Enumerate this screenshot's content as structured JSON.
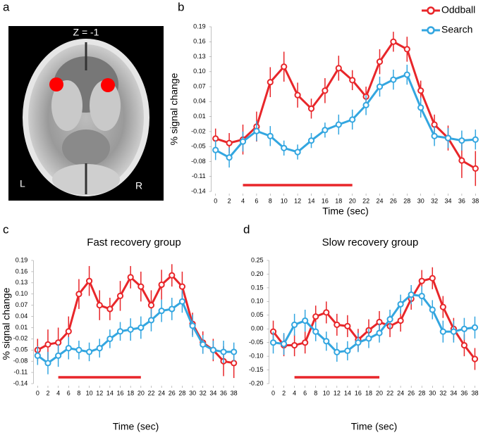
{
  "brain": {
    "panel_label": "a",
    "slice": "Z = -1",
    "left": "L",
    "right": "R"
  },
  "chart_data": [
    {
      "type": "line",
      "panel_label": "b",
      "y_label": "% signal change",
      "x_label": "Time (sec)",
      "legend": "upper right",
      "x": [
        0,
        2,
        4,
        6,
        8,
        10,
        12,
        14,
        16,
        18,
        20,
        22,
        24,
        26,
        28,
        30,
        32,
        34,
        36,
        38
      ],
      "xlim": [
        -1,
        39
      ],
      "xticks": [
        0,
        2,
        4,
        6,
        8,
        10,
        12,
        14,
        16,
        18,
        20,
        22,
        24,
        26,
        28,
        30,
        32,
        34,
        36,
        38
      ],
      "ylim": [
        -0.14,
        0.19
      ],
      "yticks": [
        -0.14,
        -0.11,
        -0.08,
        -0.05,
        -0.02,
        0.01,
        0.04,
        0.07,
        {
          "value": 0.1,
          "label": "0.10"
        },
        0.13,
        0.16,
        0.19
      ],
      "stimulus_period": [
        4,
        20
      ],
      "series": [
        {
          "name": "Oddball",
          "color": "#e8262a",
          "values": [
            -0.034,
            -0.043,
            -0.036,
            -0.01,
            0.079,
            0.11,
            0.053,
            0.026,
            0.062,
            0.107,
            0.083,
            0.05,
            0.12,
            0.16,
            0.145,
            0.062,
            -0.006,
            -0.033,
            -0.078,
            -0.094
          ],
          "errors": [
            0.02,
            0.02,
            0.03,
            0.03,
            0.03,
            0.03,
            0.025,
            0.02,
            0.025,
            0.025,
            0.02,
            0.02,
            0.025,
            0.02,
            0.025,
            0.02,
            0.02,
            0.025,
            0.035,
            0.035
          ]
        },
        {
          "name": "Search",
          "color": "#33a6e0",
          "values": [
            -0.057,
            -0.072,
            -0.04,
            -0.019,
            -0.029,
            -0.053,
            -0.061,
            -0.038,
            -0.017,
            -0.006,
            0.004,
            0.033,
            0.07,
            0.084,
            0.094,
            0.028,
            -0.029,
            -0.033,
            -0.038,
            -0.036
          ],
          "errors": [
            0.02,
            0.02,
            0.02,
            0.02,
            0.02,
            0.015,
            0.015,
            0.015,
            0.015,
            0.02,
            0.02,
            0.02,
            0.02,
            0.02,
            0.02,
            0.02,
            0.02,
            0.02,
            0.02,
            0.02
          ]
        }
      ]
    },
    {
      "type": "line",
      "panel_label": "c",
      "title": "Fast recovery group",
      "y_label": "% signal change",
      "x_label": "Time (sec)",
      "x": [
        0,
        2,
        4,
        6,
        8,
        10,
        12,
        14,
        16,
        18,
        20,
        22,
        24,
        26,
        28,
        30,
        32,
        34,
        36,
        38
      ],
      "xlim": [
        -1,
        39
      ],
      "xticks": [
        0,
        2,
        4,
        6,
        8,
        10,
        12,
        14,
        16,
        18,
        20,
        22,
        24,
        26,
        28,
        30,
        32,
        34,
        36,
        38
      ],
      "ylim": [
        -0.14,
        0.19
      ],
      "yticks": [
        -0.14,
        -0.11,
        -0.08,
        -0.05,
        -0.02,
        0.01,
        0.04,
        0.07,
        {
          "value": 0.1,
          "label": "0.10"
        },
        0.13,
        0.16,
        0.19
      ],
      "stimulus_period": [
        4,
        20
      ],
      "series": [
        {
          "color": "#e8262a",
          "values": [
            -0.05,
            -0.035,
            -0.03,
            0.0,
            0.1,
            0.135,
            0.07,
            0.06,
            0.095,
            0.145,
            0.12,
            0.07,
            0.125,
            0.15,
            0.12,
            0.02,
            -0.03,
            -0.05,
            -0.08,
            -0.085
          ],
          "errors": [
            0.03,
            0.04,
            0.04,
            0.04,
            0.04,
            0.04,
            0.04,
            0.03,
            0.04,
            0.03,
            0.04,
            0.04,
            0.04,
            0.03,
            0.04,
            0.03,
            0.03,
            0.03,
            0.04,
            0.04
          ]
        },
        {
          "color": "#33a6e0",
          "values": [
            -0.065,
            -0.085,
            -0.065,
            -0.045,
            -0.05,
            -0.055,
            -0.045,
            -0.02,
            0.0,
            0.005,
            0.01,
            0.03,
            0.055,
            0.06,
            0.08,
            0.015,
            -0.035,
            -0.05,
            -0.055,
            -0.055
          ],
          "errors": [
            0.025,
            0.03,
            0.03,
            0.03,
            0.025,
            0.025,
            0.025,
            0.025,
            0.025,
            0.03,
            0.03,
            0.03,
            0.03,
            0.03,
            0.03,
            0.03,
            0.025,
            0.025,
            0.03,
            0.025
          ]
        }
      ]
    },
    {
      "type": "line",
      "panel_label": "d",
      "title": "Slow recovery group",
      "x_label": "Time (sec)",
      "x": [
        0,
        2,
        4,
        6,
        8,
        10,
        12,
        14,
        16,
        18,
        20,
        22,
        24,
        26,
        28,
        30,
        32,
        34,
        36,
        38
      ],
      "xlim": [
        -1,
        39
      ],
      "xticks": [
        0,
        2,
        4,
        6,
        8,
        10,
        12,
        14,
        16,
        18,
        20,
        22,
        24,
        26,
        28,
        30,
        32,
        34,
        36,
        38
      ],
      "ylim": [
        -0.2,
        0.25
      ],
      "yticks": [
        {
          "value": -0.2,
          "label": "-0.20"
        },
        -0.15,
        {
          "value": -0.1,
          "label": "-0.10"
        },
        -0.05,
        {
          "value": 0,
          "label": "0.00"
        },
        0.05,
        {
          "value": 0.1,
          "label": "0.10"
        },
        0.15,
        {
          "value": 0.2,
          "label": "0.20"
        },
        0.25
      ],
      "stimulus_period": [
        4,
        20
      ],
      "series": [
        {
          "color": "#e8262a",
          "values": [
            -0.01,
            -0.06,
            -0.06,
            -0.05,
            0.045,
            0.06,
            0.015,
            0.01,
            -0.04,
            -0.005,
            0.025,
            0.01,
            0.03,
            0.11,
            0.175,
            0.185,
            0.08,
            0.0,
            -0.06,
            -0.11
          ],
          "errors": [
            0.04,
            0.04,
            0.04,
            0.04,
            0.04,
            0.04,
            0.04,
            0.04,
            0.04,
            0.04,
            0.04,
            0.04,
            0.04,
            0.04,
            0.04,
            0.04,
            0.04,
            0.04,
            0.04,
            0.04
          ]
        },
        {
          "color": "#33a6e0",
          "values": [
            -0.05,
            -0.055,
            0.015,
            0.03,
            -0.01,
            -0.045,
            -0.085,
            -0.08,
            -0.05,
            -0.035,
            -0.015,
            0.035,
            0.09,
            0.125,
            0.12,
            0.07,
            -0.01,
            -0.01,
            0.0,
            0.005
          ],
          "errors": [
            0.04,
            0.04,
            0.04,
            0.04,
            0.035,
            0.035,
            0.035,
            0.035,
            0.035,
            0.035,
            0.035,
            0.035,
            0.035,
            0.035,
            0.035,
            0.035,
            0.04,
            0.04,
            0.04,
            0.04
          ]
        }
      ]
    }
  ]
}
